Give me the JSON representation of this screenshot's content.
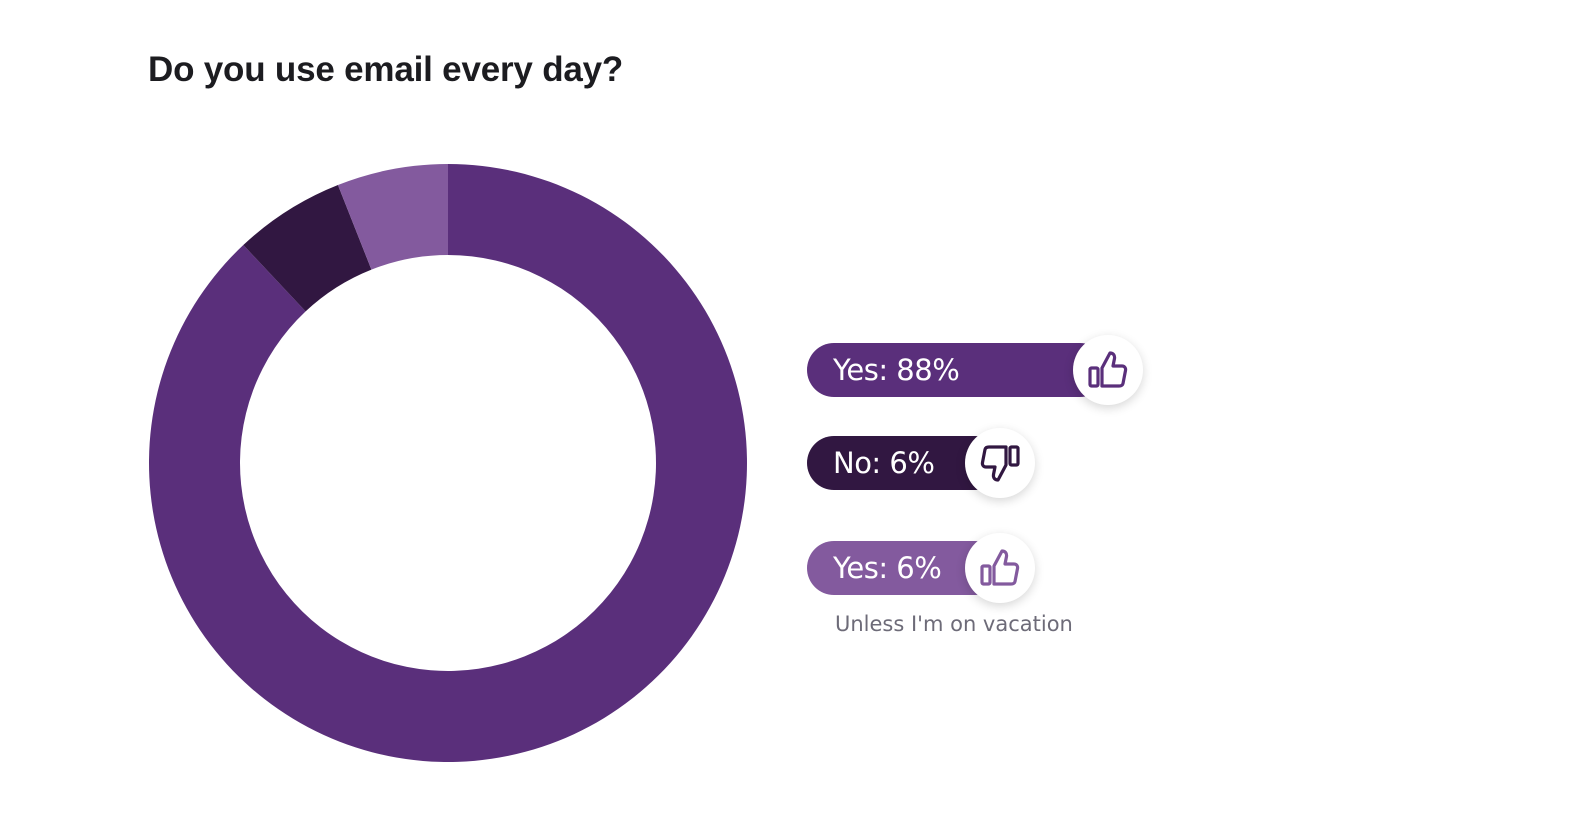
{
  "title": "Do you use email every day?",
  "chart_data": {
    "type": "pie",
    "variant": "donut",
    "title": "Do you use email every day?",
    "slices": [
      {
        "label": "Yes: 88%",
        "category": "Yes",
        "value": 88,
        "color": "#5a2f7b",
        "icon": "thumbs-up-icon",
        "note": ""
      },
      {
        "label": "No: 6%",
        "category": "No",
        "value": 6,
        "color": "#311741",
        "icon": "thumbs-down-icon",
        "note": ""
      },
      {
        "label": "Yes: 6%",
        "category": "Yes",
        "value": 6,
        "color": "#835a9e",
        "icon": "thumbs-up-icon",
        "note": "Unless I'm on vacation"
      }
    ],
    "legend_placement": "right"
  }
}
